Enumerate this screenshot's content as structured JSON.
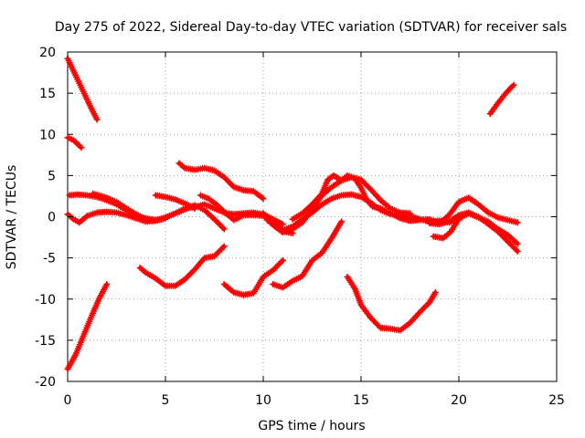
{
  "chart_data": {
    "type": "scatter",
    "title": "Day 275 of 2022, Sidereal Day-to-day VTEC variation (SDTVAR) for receiver sals",
    "xlabel": "GPS time / hours",
    "ylabel": "SDTVAR / TECUs",
    "xlim": [
      0,
      25
    ],
    "ylim": [
      -20,
      20
    ],
    "xticks": [
      "0",
      "5",
      "10",
      "15",
      "20",
      "25"
    ],
    "yticks": [
      "-20",
      "-15",
      "-10",
      "-5",
      "0",
      "5",
      "10",
      "15",
      "20"
    ],
    "grid": true,
    "marker_color": "#ff0000",
    "series": [
      {
        "name": "s1",
        "x": [
          0.0,
          0.4,
          0.8,
          1.2,
          1.5
        ],
        "y": [
          19.2,
          17.2,
          15.2,
          13.2,
          11.8
        ]
      },
      {
        "name": "s2",
        "x": [
          0.0,
          0.3,
          0.7
        ],
        "y": [
          9.6,
          9.3,
          8.4
        ]
      },
      {
        "name": "s3",
        "x": [
          0.0,
          0.4,
          0.8,
          1.2,
          1.6,
          2.0
        ],
        "y": [
          -18.5,
          -16.8,
          -14.5,
          -12.2,
          -10.0,
          -8.2
        ]
      },
      {
        "name": "s4",
        "x": [
          0.1,
          0.5,
          1.0,
          1.5,
          2.0,
          2.5,
          3.0,
          3.5,
          4.0,
          4.5,
          5.0,
          5.5,
          6.0,
          6.5,
          7.0,
          7.5,
          8.0
        ],
        "y": [
          2.6,
          2.7,
          2.6,
          2.4,
          2.0,
          1.5,
          0.8,
          0.2,
          -0.2,
          -0.4,
          -0.1,
          0.4,
          0.9,
          1.4,
          0.8,
          -0.3,
          -1.5
        ]
      },
      {
        "name": "s5",
        "x": [
          0.0,
          0.3,
          0.6,
          1.0,
          1.5,
          2.0,
          2.5,
          3.0,
          3.5,
          4.0,
          4.5,
          5.0
        ],
        "y": [
          0.3,
          -0.3,
          -0.7,
          0.1,
          0.5,
          0.6,
          0.5,
          0.2,
          -0.2,
          -0.6,
          -0.5,
          -0.2
        ]
      },
      {
        "name": "s6",
        "x": [
          1.3,
          2.0,
          2.5,
          3.0,
          3.5,
          4.0,
          4.5,
          5.0,
          5.5,
          6.0,
          6.5,
          7.0,
          7.5,
          8.0,
          8.5,
          9.0,
          9.5,
          10.0,
          10.5,
          11.0
        ],
        "y": [
          2.8,
          2.3,
          1.8,
          1.0,
          0.3,
          -0.3,
          -0.5,
          -0.1,
          0.4,
          1.0,
          1.2,
          1.5,
          1.0,
          0.5,
          0.3,
          0.4,
          0.5,
          0.3,
          -0.3,
          -0.9
        ]
      },
      {
        "name": "s7",
        "x": [
          4.5,
          5.0,
          5.5,
          6.0,
          6.5
        ],
        "y": [
          2.6,
          2.4,
          2.1,
          1.6,
          1.0
        ]
      },
      {
        "name": "s8",
        "x": [
          5.7,
          6.0,
          6.5,
          7.0,
          7.5,
          8.0,
          8.5,
          9.0,
          9.5,
          10.0
        ],
        "y": [
          6.5,
          5.9,
          5.7,
          5.9,
          5.6,
          4.8,
          3.6,
          3.2,
          3.1,
          2.2
        ]
      },
      {
        "name": "s9",
        "x": [
          6.8,
          7.2,
          7.6,
          8.0,
          8.5,
          9.0,
          9.5,
          10.0,
          10.5,
          11.0,
          11.5
        ],
        "y": [
          2.6,
          2.2,
          1.5,
          0.6,
          -0.4,
          0.2,
          0.2,
          0.1,
          -0.6,
          -1.8,
          -2.0
        ]
      },
      {
        "name": "s10",
        "x": [
          3.7,
          4.0,
          4.5,
          5.0,
          5.5,
          6.0,
          6.5,
          7.0,
          7.5,
          8.0
        ],
        "y": [
          -6.2,
          -6.8,
          -7.5,
          -8.4,
          -8.4,
          -7.6,
          -6.4,
          -5.0,
          -4.8,
          -3.6
        ]
      },
      {
        "name": "s11",
        "x": [
          8.0,
          8.5,
          9.0,
          9.5,
          10.0,
          10.5,
          11.0
        ],
        "y": [
          -8.2,
          -9.2,
          -9.5,
          -9.3,
          -7.3,
          -6.5,
          -5.3
        ]
      },
      {
        "name": "s12",
        "x": [
          10.0,
          10.5,
          11.0,
          11.5,
          12.0,
          12.5,
          13.0,
          13.5,
          14.0,
          14.5,
          15.0,
          15.5,
          16.0,
          16.5,
          17.0,
          17.5,
          18.0
        ],
        "y": [
          0.4,
          -0.8,
          -1.6,
          -1.2,
          -0.3,
          0.5,
          1.5,
          2.2,
          2.6,
          2.7,
          2.4,
          1.7,
          0.8,
          0.3,
          0.2,
          0.1,
          -0.3
        ]
      },
      {
        "name": "s13",
        "x": [
          10.2,
          10.6,
          11.0,
          11.5,
          12.0,
          12.5,
          13.0,
          13.5,
          14.0,
          14.5,
          15.0,
          15.5,
          16.0,
          16.5,
          17.0,
          17.5
        ],
        "y": [
          -0.4,
          -1.2,
          -1.9,
          -1.5,
          -0.7,
          0.9,
          2.6,
          3.6,
          4.4,
          4.8,
          4.5,
          3.3,
          2.0,
          1.0,
          0.5,
          0.4
        ]
      },
      {
        "name": "s14",
        "x": [
          11.5,
          12.0,
          12.5,
          13.0,
          13.3,
          13.6,
          14.0,
          14.3,
          14.7,
          15.0,
          15.3,
          15.6,
          16.0,
          16.5,
          17.0,
          17.5,
          18.0,
          18.5,
          19.0,
          19.5,
          20.0
        ],
        "y": [
          -0.3,
          0.4,
          1.5,
          2.8,
          4.5,
          5.0,
          4.4,
          5.0,
          4.6,
          3.5,
          2.0,
          1.2,
          1.0,
          0.4,
          -0.2,
          -0.5,
          -0.3,
          -0.6,
          -0.5,
          -0.7,
          -0.4
        ]
      },
      {
        "name": "s15",
        "x": [
          10.5,
          11.0,
          11.5,
          12.0,
          12.5,
          13.0,
          13.5,
          14.0
        ],
        "y": [
          -8.2,
          -8.6,
          -7.8,
          -7.2,
          -5.3,
          -4.4,
          -2.6,
          -0.6
        ]
      },
      {
        "name": "s16",
        "x": [
          14.3,
          14.7,
          15.0,
          15.5,
          16.0,
          16.5,
          17.0,
          17.5,
          18.0,
          18.5,
          18.8
        ],
        "y": [
          -7.3,
          -8.8,
          -10.7,
          -12.3,
          -13.5,
          -13.6,
          -13.8,
          -12.9,
          -11.6,
          -10.4,
          -9.2
        ]
      },
      {
        "name": "s17",
        "x": [
          17.0,
          17.5,
          18.0,
          18.5,
          19.0,
          19.5,
          20.0,
          20.5,
          21.0,
          21.5,
          22.0,
          22.5,
          23.0
        ],
        "y": [
          0.1,
          -0.5,
          -0.4,
          -0.3,
          -0.8,
          0.2,
          1.8,
          2.3,
          1.5,
          0.5,
          -0.1,
          -0.4,
          -0.7
        ]
      },
      {
        "name": "s18",
        "x": [
          18.5,
          19.0,
          19.5,
          20.0,
          20.5,
          21.0,
          21.5,
          22.0,
          22.5,
          23.0
        ],
        "y": [
          -0.8,
          -0.9,
          -0.6,
          0.2,
          0.5,
          0.0,
          -0.9,
          -1.8,
          -3.0,
          -4.2
        ]
      },
      {
        "name": "s19",
        "x": [
          18.7,
          19.2,
          19.6,
          20.0,
          20.5,
          21.0,
          21.5,
          22.0,
          22.5,
          23.0
        ],
        "y": [
          -2.4,
          -2.6,
          -1.8,
          -0.2,
          0.4,
          -0.1,
          -0.6,
          -1.5,
          -2.2,
          -3.3
        ]
      },
      {
        "name": "s20",
        "x": [
          21.6,
          22.0,
          22.4,
          22.8
        ],
        "y": [
          12.5,
          13.8,
          15.0,
          16.0
        ]
      }
    ]
  }
}
